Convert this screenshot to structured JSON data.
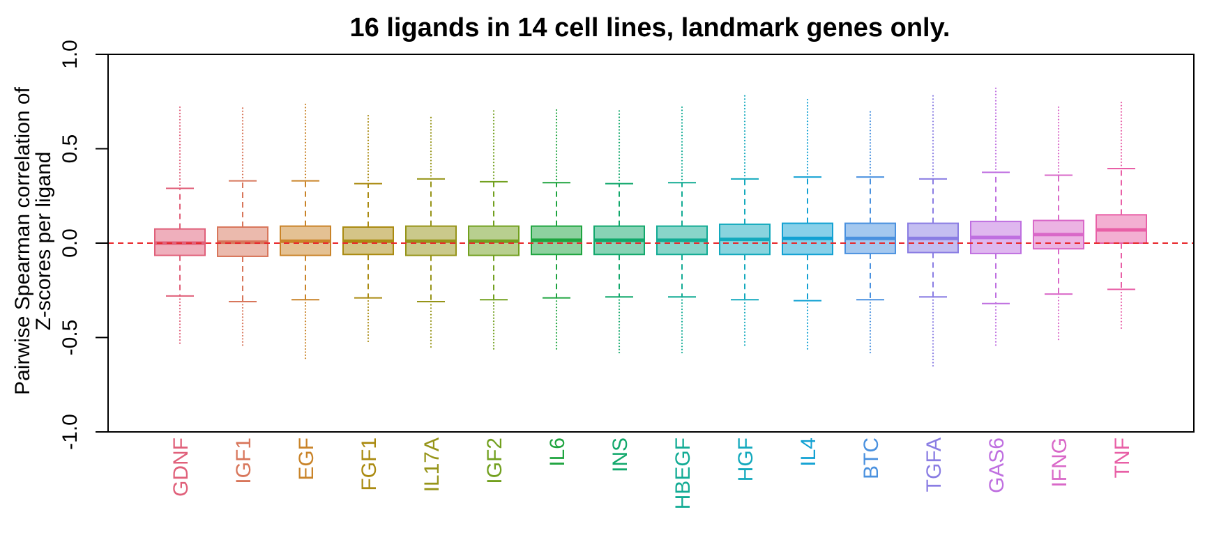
{
  "chart_data": {
    "type": "box",
    "title": "16 ligands in 14 cell lines, landmark genes only.",
    "ylabel_lines": [
      "Pairwise Spearman correlation of",
      "Z-scores per ligand"
    ],
    "xlabel": "",
    "ylim": [
      -1.0,
      1.0
    ],
    "yticks": [
      "-1.0",
      "-0.5",
      "0.0",
      "0.5",
      "1.0"
    ],
    "reference_line": {
      "y": 0.0,
      "color": "#e8262a",
      "style": "dashed"
    },
    "categories": [
      "GDNF",
      "IGF1",
      "EGF",
      "FGF1",
      "IL17A",
      "IGF2",
      "IL6",
      "INS",
      "HBEGF",
      "HGF",
      "IL4",
      "BTC",
      "TGFA",
      "GAS6",
      "IFNG",
      "TNF"
    ],
    "colors": [
      "#e0607a",
      "#d8765b",
      "#c98328",
      "#aa8a10",
      "#969418",
      "#72a01f",
      "#1ea43f",
      "#11a86b",
      "#12ab94",
      "#13a9bd",
      "#12a1d3",
      "#4a91df",
      "#8a7de3",
      "#bf6fe0",
      "#d968c8",
      "#e85fa6"
    ],
    "boxes": [
      {
        "name": "GDNF",
        "q1": -0.065,
        "median": 0.0,
        "q3": 0.075,
        "whisker_low": -0.28,
        "whisker_high": 0.29,
        "min": -0.53,
        "max": 0.72
      },
      {
        "name": "IGF1",
        "q1": -0.07,
        "median": 0.005,
        "q3": 0.085,
        "whisker_low": -0.31,
        "whisker_high": 0.33,
        "min": -0.54,
        "max": 0.715
      },
      {
        "name": "EGF",
        "q1": -0.065,
        "median": 0.01,
        "q3": 0.09,
        "whisker_low": -0.3,
        "whisker_high": 0.33,
        "min": -0.61,
        "max": 0.735
      },
      {
        "name": "FGF1",
        "q1": -0.06,
        "median": 0.01,
        "q3": 0.085,
        "whisker_low": -0.29,
        "whisker_high": 0.315,
        "min": -0.52,
        "max": 0.675
      },
      {
        "name": "IL17A",
        "q1": -0.065,
        "median": 0.01,
        "q3": 0.09,
        "whisker_low": -0.31,
        "whisker_high": 0.34,
        "min": -0.55,
        "max": 0.665
      },
      {
        "name": "IGF2",
        "q1": -0.065,
        "median": 0.01,
        "q3": 0.09,
        "whisker_low": -0.3,
        "whisker_high": 0.325,
        "min": -0.56,
        "max": 0.7
      },
      {
        "name": "IL6",
        "q1": -0.06,
        "median": 0.015,
        "q3": 0.09,
        "whisker_low": -0.29,
        "whisker_high": 0.32,
        "min": -0.56,
        "max": 0.705
      },
      {
        "name": "INS",
        "q1": -0.06,
        "median": 0.015,
        "q3": 0.09,
        "whisker_low": -0.285,
        "whisker_high": 0.315,
        "min": -0.58,
        "max": 0.7
      },
      {
        "name": "HBEGF",
        "q1": -0.06,
        "median": 0.015,
        "q3": 0.09,
        "whisker_low": -0.285,
        "whisker_high": 0.32,
        "min": -0.58,
        "max": 0.72
      },
      {
        "name": "HGF",
        "q1": -0.06,
        "median": 0.02,
        "q3": 0.1,
        "whisker_low": -0.3,
        "whisker_high": 0.34,
        "min": -0.54,
        "max": 0.78
      },
      {
        "name": "IL4",
        "q1": -0.06,
        "median": 0.025,
        "q3": 0.105,
        "whisker_low": -0.305,
        "whisker_high": 0.35,
        "min": -0.56,
        "max": 0.76
      },
      {
        "name": "BTC",
        "q1": -0.055,
        "median": 0.025,
        "q3": 0.105,
        "whisker_low": -0.3,
        "whisker_high": 0.35,
        "min": -0.58,
        "max": 0.695
      },
      {
        "name": "TGFA",
        "q1": -0.05,
        "median": 0.025,
        "q3": 0.105,
        "whisker_low": -0.285,
        "whisker_high": 0.34,
        "min": -0.65,
        "max": 0.78
      },
      {
        "name": "GAS6",
        "q1": -0.055,
        "median": 0.03,
        "q3": 0.115,
        "whisker_low": -0.32,
        "whisker_high": 0.375,
        "min": -0.54,
        "max": 0.82
      },
      {
        "name": "IFNG",
        "q1": -0.03,
        "median": 0.045,
        "q3": 0.12,
        "whisker_low": -0.27,
        "whisker_high": 0.36,
        "min": -0.51,
        "max": 0.72
      },
      {
        "name": "TNF",
        "q1": 0.0,
        "median": 0.07,
        "q3": 0.15,
        "whisker_low": -0.245,
        "whisker_high": 0.395,
        "min": -0.45,
        "max": 0.745
      }
    ],
    "grid": false,
    "legend": "none"
  }
}
